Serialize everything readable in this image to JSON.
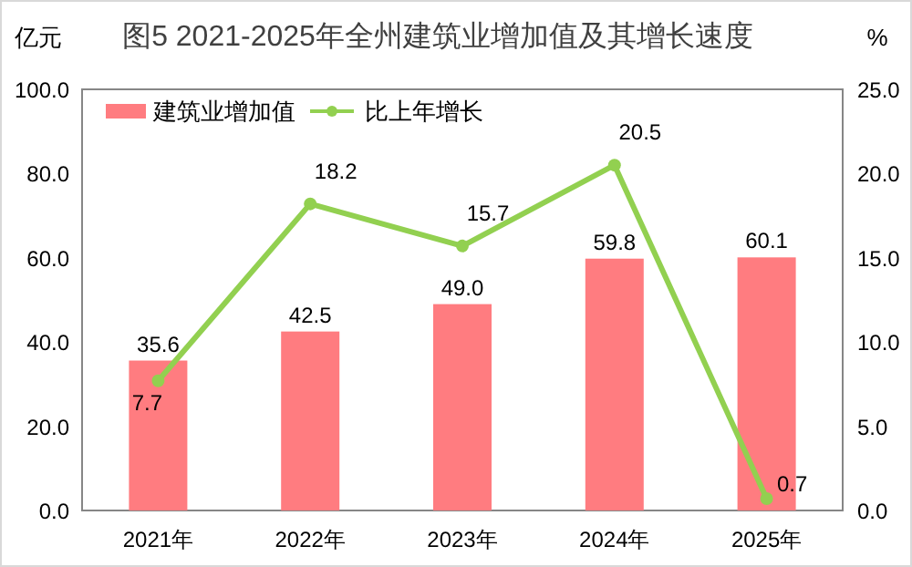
{
  "chart_data": {
    "type": "bar",
    "title": "图5  2021-2025年全州建筑业增加值及其增长速度",
    "ylabel": "亿元",
    "y2label": "%",
    "categories": [
      "2021年",
      "2022年",
      "2023年",
      "2024年",
      "2025年"
    ],
    "series": [
      {
        "name": "建筑业增加值",
        "color": "#ff7c80",
        "values": [
          35.6,
          42.5,
          49.0,
          59.8,
          60.1
        ],
        "value_labels": [
          "35.6",
          "42.5",
          "49.0",
          "59.8",
          "60.1"
        ]
      },
      {
        "name": "比上年增长",
        "type": "line",
        "axis": "y2",
        "color": "#92d050",
        "marker": "circle",
        "values": [
          7.7,
          18.2,
          15.7,
          20.5,
          0.7
        ],
        "value_labels": [
          "7.7",
          "18.2",
          "15.7",
          "20.5",
          "0.7"
        ]
      }
    ],
    "ylim": [
      0,
      100
    ],
    "yticks": [
      {
        "value": 0,
        "label": "0.0"
      },
      {
        "value": 20,
        "label": "20.0"
      },
      {
        "value": 40,
        "label": "40.0"
      },
      {
        "value": 60,
        "label": "60.0"
      },
      {
        "value": 80,
        "label": "80.0"
      },
      {
        "value": 100,
        "label": "100.0"
      }
    ],
    "y2lim": [
      0,
      25
    ],
    "y2ticks": [
      {
        "value": 0,
        "label": "0.0"
      },
      {
        "value": 5,
        "label": "5.0"
      },
      {
        "value": 10,
        "label": "10.0"
      },
      {
        "value": 15,
        "label": "15.0"
      },
      {
        "value": 20,
        "label": "20.0"
      },
      {
        "value": 25,
        "label": "25.0"
      }
    ],
    "legend": "top left",
    "grid": false
  }
}
